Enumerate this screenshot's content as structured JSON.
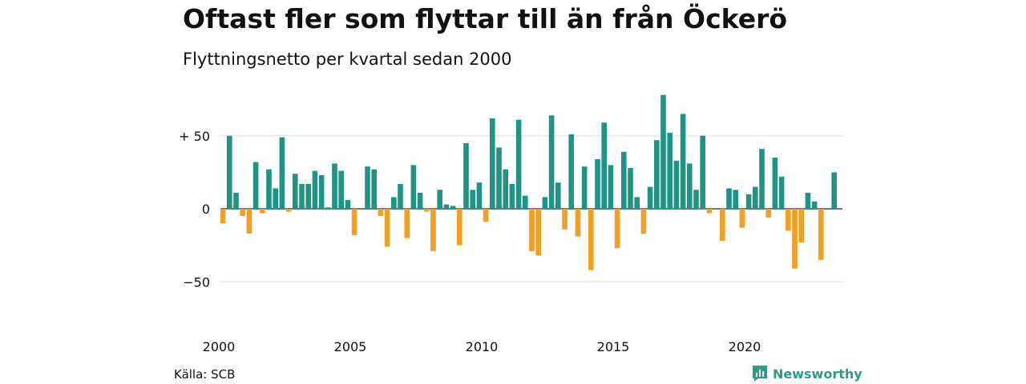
{
  "header": {
    "title": "Oftast fler som flyttar till än från Öckerö",
    "subtitle": "Flyttningsnetto per kvartal sedan 2000"
  },
  "footer": {
    "source": "Källa: SCB",
    "brand": "Newsworthy"
  },
  "colors": {
    "positive": "#1f9484",
    "negative": "#f2a023",
    "grid": "#dddddd",
    "brand": "#2e9a88"
  },
  "chart_data": {
    "type": "bar",
    "title": "Oftast fler som flyttar till än från Öckerö",
    "subtitle": "Flyttningsnetto per kvartal sedan 2000",
    "xlabel": "",
    "ylabel": "",
    "x_start": "2000",
    "x_step": "quarter",
    "x_ticks": [
      "2000",
      "2005",
      "2010",
      "2015",
      "2020"
    ],
    "y_ticks": [
      {
        "value": 50,
        "label": "+ 50"
      },
      {
        "value": 0,
        "label": "0"
      },
      {
        "value": -50,
        "label": "−50"
      }
    ],
    "ylim": [
      -75,
      80
    ],
    "grid": true,
    "legend": "none",
    "values": [
      -10,
      50,
      11,
      -5,
      -17,
      32,
      -3,
      27,
      14,
      49,
      -2,
      24,
      17,
      17,
      26,
      23,
      1,
      31,
      26,
      6,
      -18,
      0,
      29,
      27,
      -5,
      -26,
      8,
      17,
      -20,
      30,
      11,
      -2,
      -29,
      13,
      3,
      2,
      -25,
      45,
      13,
      18,
      -9,
      62,
      42,
      27,
      17,
      61,
      9,
      -29,
      -32,
      8,
      64,
      18,
      -14,
      51,
      -19,
      29,
      -42,
      34,
      59,
      30,
      -27,
      39,
      28,
      8,
      -17,
      15,
      47,
      78,
      52,
      33,
      65,
      31,
      13,
      50,
      -3,
      0,
      -22,
      14,
      13,
      -13,
      10,
      15,
      41,
      -6,
      35,
      22,
      -15,
      -41,
      -23,
      11,
      5,
      -35,
      0,
      25
    ]
  }
}
